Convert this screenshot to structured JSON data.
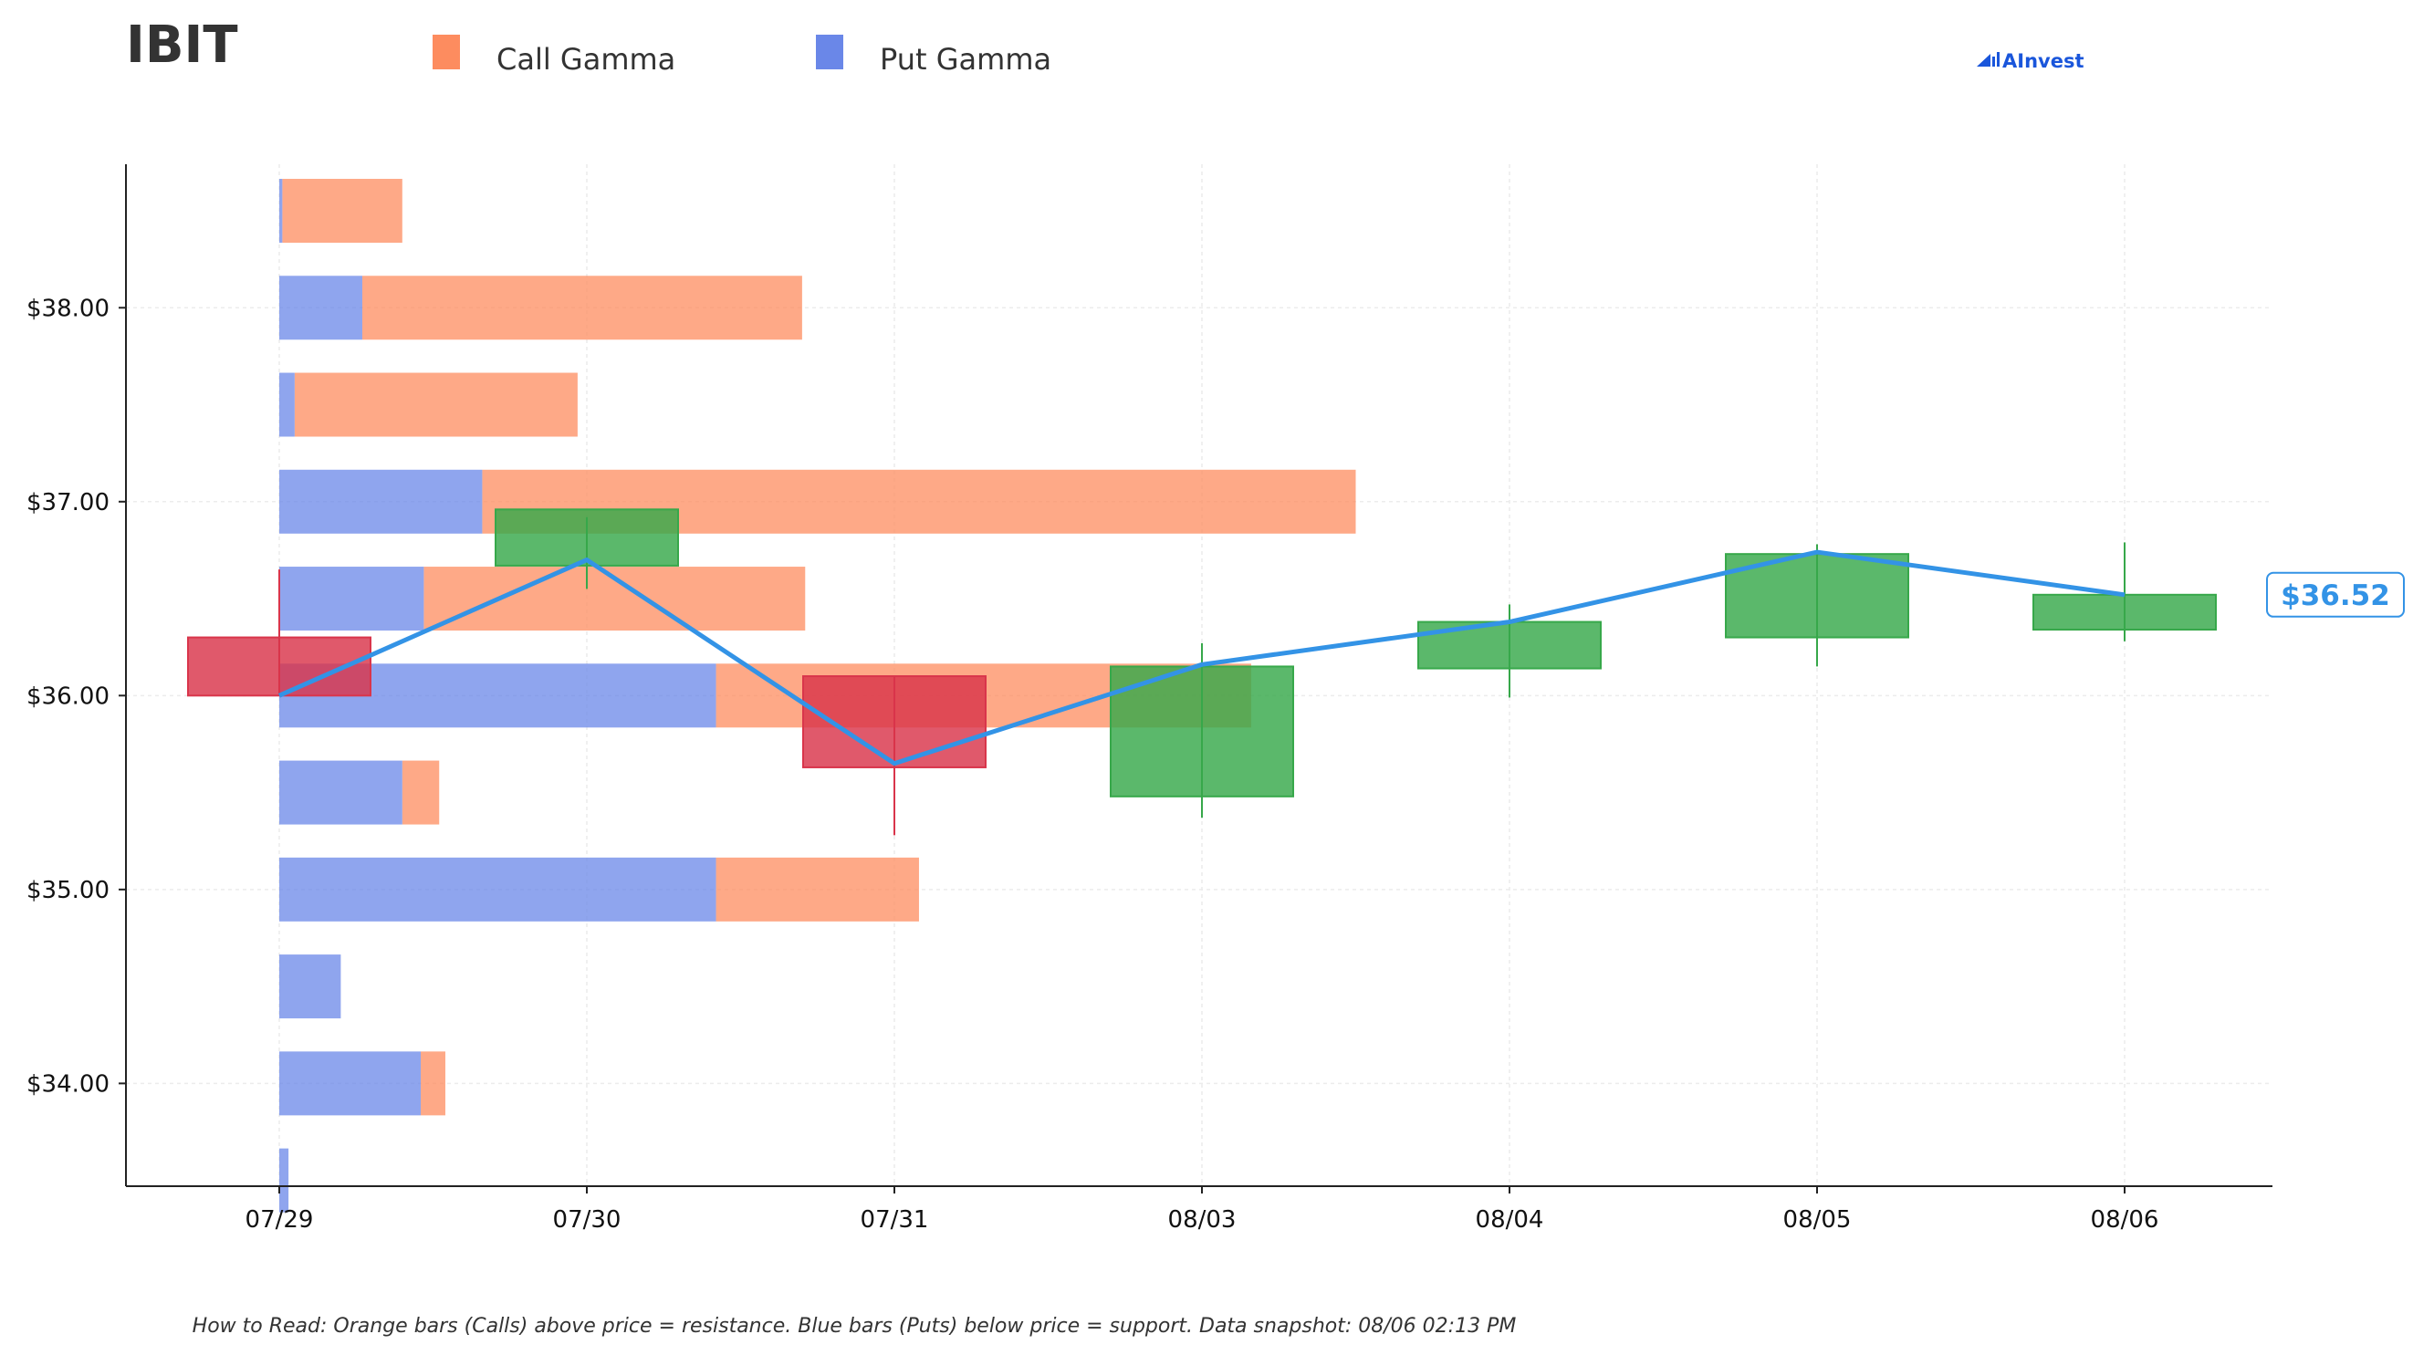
{
  "title": "IBIT",
  "logo_text": "AInvest",
  "footnote": "How to Read: Orange bars (Calls) above price = resistance. Blue bars (Puts) below price = support. Data snapshot: 08/06 02:13 PM",
  "colors": {
    "call": "#fd8c5f",
    "put": "#6a87e8",
    "up": "#37a84a",
    "down": "#d9354b",
    "price_line": "#3393e6",
    "axis": "#222222",
    "grid": "#ececec"
  },
  "chart_data": {
    "type": "bar",
    "legend": [
      {
        "name": "Call Gamma",
        "color": "#fd8c5f"
      },
      {
        "name": "Put Gamma",
        "color": "#6a87e8"
      }
    ],
    "legend_position": "top",
    "grid": true,
    "x": [
      "07/29",
      "07/30",
      "07/31",
      "08/03",
      "08/04",
      "08/05",
      "08/06"
    ],
    "ylim": [
      33.47,
      38.74
    ],
    "yticks": [
      34.0,
      35.0,
      36.0,
      37.0,
      38.0
    ],
    "ytick_labels": [
      "$34.00",
      "$35.00",
      "$36.00",
      "$37.00",
      "$38.00"
    ],
    "gamma_profile": {
      "strikes": [
        33.5,
        34.0,
        34.5,
        35.0,
        35.5,
        36.0,
        36.5,
        37.0,
        37.5,
        38.0,
        38.5
      ],
      "put_gamma": [
        0.03,
        0.46,
        0.2,
        1.42,
        0.4,
        1.42,
        0.47,
        0.66,
        0.05,
        0.27,
        0.01
      ],
      "call_gamma": [
        0.0,
        0.08,
        0.0,
        0.66,
        0.12,
        1.74,
        1.24,
        2.84,
        0.92,
        1.43,
        0.39
      ],
      "unit": "relative gamma (days of x-axis width)"
    },
    "candles": [
      {
        "date": "07/29",
        "open": 36.3,
        "high": 36.65,
        "low": 36.0,
        "close": 36.0
      },
      {
        "date": "07/30",
        "open": 36.67,
        "high": 36.92,
        "low": 36.55,
        "close": 36.96
      },
      {
        "date": "07/31",
        "open": 36.1,
        "high": 36.1,
        "low": 35.28,
        "close": 35.63
      },
      {
        "date": "08/03",
        "open": 35.48,
        "high": 36.27,
        "low": 35.37,
        "close": 36.15
      },
      {
        "date": "08/04",
        "open": 36.14,
        "high": 36.47,
        "low": 35.99,
        "close": 36.38
      },
      {
        "date": "08/05",
        "open": 36.3,
        "high": 36.78,
        "low": 36.15,
        "close": 36.73
      },
      {
        "date": "08/06",
        "open": 36.34,
        "high": 36.79,
        "low": 36.28,
        "close": 36.52
      }
    ],
    "price_line": {
      "x": [
        "07/29",
        "07/30",
        "07/31",
        "08/03",
        "08/04",
        "08/05",
        "08/06"
      ],
      "y": [
        36.0,
        36.7,
        35.65,
        36.16,
        36.38,
        36.74,
        36.52
      ]
    },
    "last_price_label": "$36.52"
  }
}
